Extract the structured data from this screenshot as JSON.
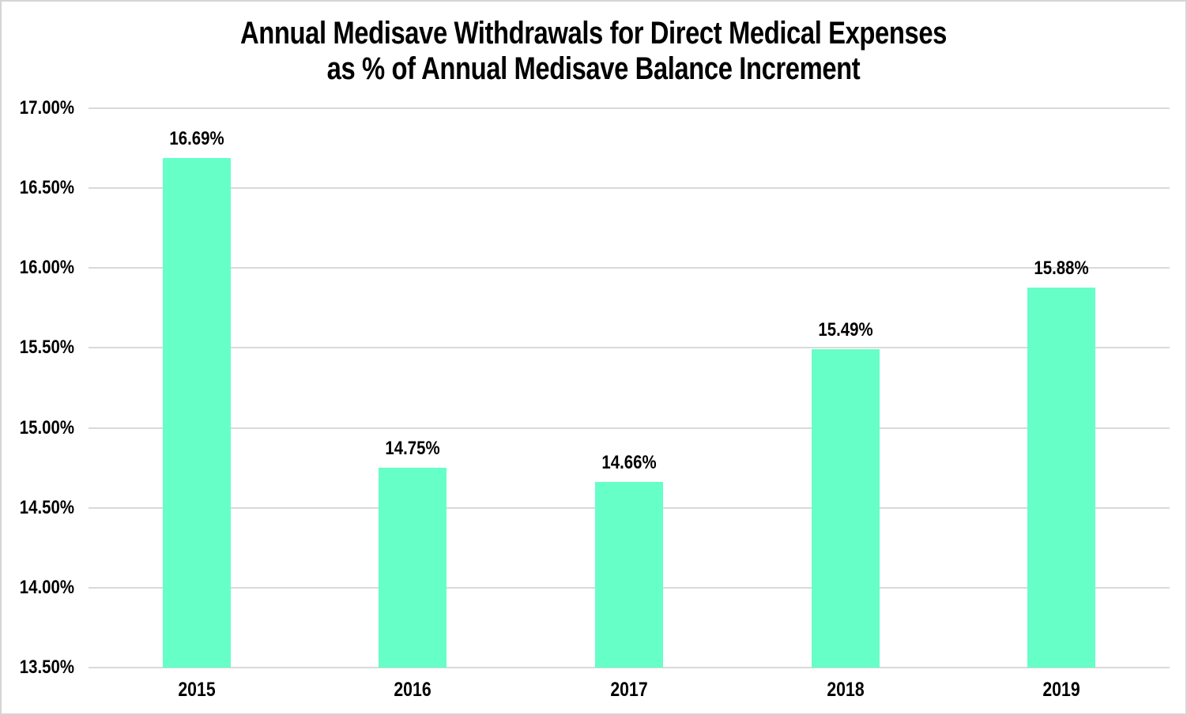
{
  "chart_data": {
    "type": "bar",
    "title_line1": "Annual Medisave Withdrawals for Direct Medical Expenses",
    "title_line2": "as % of Annual Medisave Balance Increment",
    "categories": [
      "2015",
      "2016",
      "2017",
      "2018",
      "2019"
    ],
    "values": [
      16.69,
      14.75,
      14.66,
      15.49,
      15.88
    ],
    "value_labels": [
      "16.69%",
      "14.75%",
      "14.66%",
      "15.49%",
      "15.88%"
    ],
    "ylim": [
      13.5,
      17.0
    ],
    "ytick_values": [
      17.0,
      16.5,
      16.0,
      15.5,
      15.0,
      14.5,
      14.0,
      13.5
    ],
    "ytick_labels": [
      "17.00%",
      "16.50%",
      "16.00%",
      "15.50%",
      "15.00%",
      "14.50%",
      "14.00%",
      "13.50%"
    ],
    "grid": true,
    "legend": null,
    "colors": {
      "bar": "#66FFC8",
      "gridline": "#D9D9D9",
      "text": "#000000",
      "background": "#FFFFFF",
      "frame_border": "#D5D5D5"
    }
  }
}
